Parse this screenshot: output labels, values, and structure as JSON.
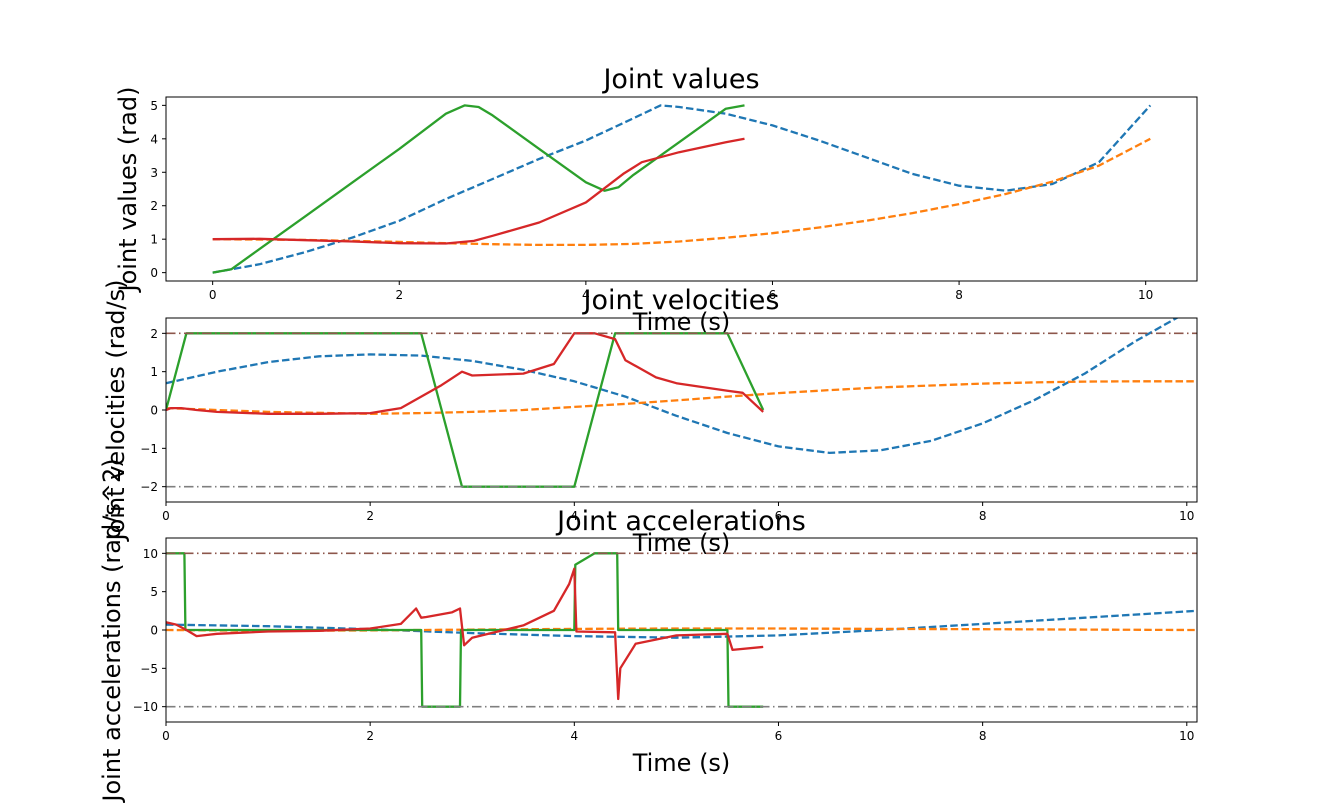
{
  "chart_data": [
    {
      "type": "line",
      "title": "Joint values",
      "xlabel": "Time (s)",
      "ylabel": "Joint values (rad)",
      "xlim": [
        -0.5,
        10.55
      ],
      "ylim": [
        -0.25,
        5.25
      ],
      "xticks": [
        0,
        2,
        4,
        6,
        8,
        10
      ],
      "yticks": [
        0,
        1,
        2,
        3,
        4,
        5
      ],
      "grid": false,
      "series": [
        {
          "color": "#1f77b4",
          "style": "dashed",
          "x": [
            0,
            0.5,
            1,
            1.5,
            2,
            2.5,
            3,
            3.5,
            4,
            4.5,
            4.8,
            5,
            5.5,
            6,
            6.5,
            7,
            7.5,
            8,
            8.5,
            9,
            9.5,
            10.05
          ],
          "y": [
            0,
            0.25,
            0.62,
            1.05,
            1.55,
            2.2,
            2.8,
            3.4,
            3.95,
            4.6,
            5.0,
            4.95,
            4.75,
            4.4,
            3.95,
            3.45,
            2.95,
            2.6,
            2.45,
            2.65,
            3.3,
            5.0
          ]
        },
        {
          "color": "#ff7f0e",
          "style": "dashed",
          "x": [
            0,
            1,
            2,
            2.5,
            3,
            3.5,
            4,
            4.5,
            5,
            5.5,
            6,
            6.5,
            7,
            7.5,
            8,
            8.5,
            9,
            9.5,
            10.05
          ],
          "y": [
            1.0,
            0.98,
            0.92,
            0.88,
            0.85,
            0.83,
            0.83,
            0.86,
            0.93,
            1.04,
            1.18,
            1.35,
            1.55,
            1.78,
            2.05,
            2.35,
            2.72,
            3.2,
            4.0
          ]
        },
        {
          "color": "#2ca02c",
          "style": "solid",
          "x": [
            0,
            0.2,
            0.5,
            1,
            1.5,
            2,
            2.5,
            2.7,
            2.85,
            3,
            3.5,
            4,
            4.2,
            4.35,
            4.5,
            5,
            5.5,
            5.7
          ],
          "y": [
            0,
            0.1,
            0.7,
            1.7,
            2.7,
            3.7,
            4.75,
            5.0,
            4.95,
            4.7,
            3.7,
            2.7,
            2.45,
            2.55,
            2.9,
            3.9,
            4.9,
            5.0
          ]
        },
        {
          "color": "#d62728",
          "style": "solid",
          "x": [
            0,
            0.5,
            1,
            1.5,
            2,
            2.5,
            2.8,
            3,
            3.5,
            4,
            4.4,
            4.6,
            5,
            5.5,
            5.7
          ],
          "y": [
            1.0,
            1.01,
            0.97,
            0.93,
            0.88,
            0.87,
            0.95,
            1.1,
            1.5,
            2.1,
            2.95,
            3.3,
            3.6,
            3.9,
            4.0
          ]
        }
      ]
    },
    {
      "type": "line",
      "title": "Joint velocities",
      "xlabel": "Time (s)",
      "ylabel": "Joint velocities (rad/s)",
      "xlim": [
        0,
        10.1
      ],
      "ylim": [
        -2.4,
        2.4
      ],
      "xticks": [
        0,
        2,
        4,
        6,
        8,
        10
      ],
      "yticks": [
        -2,
        -1,
        0,
        1,
        2
      ],
      "grid": false,
      "series": [
        {
          "color": "#1f77b4",
          "style": "dashed",
          "x": [
            0,
            0.5,
            1,
            1.5,
            2,
            2.5,
            3,
            3.5,
            4,
            4.5,
            5,
            5.5,
            6,
            6.5,
            7,
            7.5,
            8,
            8.5,
            9,
            9.5,
            10.1
          ],
          "y": [
            0.7,
            1.0,
            1.25,
            1.4,
            1.45,
            1.42,
            1.28,
            1.05,
            0.75,
            0.35,
            -0.15,
            -0.6,
            -0.95,
            -1.12,
            -1.05,
            -0.8,
            -0.35,
            0.25,
            0.95,
            1.8,
            2.7
          ]
        },
        {
          "color": "#ff7f0e",
          "style": "dashed",
          "x": [
            0,
            1,
            2,
            2.5,
            3,
            3.5,
            4,
            4.5,
            5,
            5.5,
            6,
            6.5,
            7,
            7.5,
            8,
            8.5,
            9,
            9.5,
            10.1
          ],
          "y": [
            0.05,
            -0.05,
            -0.1,
            -0.08,
            -0.05,
            0.0,
            0.08,
            0.16,
            0.25,
            0.35,
            0.44,
            0.52,
            0.59,
            0.64,
            0.69,
            0.72,
            0.74,
            0.75,
            0.75
          ]
        },
        {
          "color": "#2ca02c",
          "style": "solid",
          "x": [
            0,
            0.2,
            2.5,
            2.9,
            4.0,
            4.4,
            5.5,
            5.85
          ],
          "y": [
            0.0,
            2.0,
            2.0,
            -2.0,
            -2.0,
            2.0,
            2.0,
            0.0
          ]
        },
        {
          "color": "#d62728",
          "style": "solid",
          "x": [
            0,
            0.05,
            0.15,
            0.3,
            0.5,
            1,
            1.5,
            2,
            2.3,
            2.5,
            2.7,
            2.9,
            3,
            3.5,
            3.8,
            4.0,
            4.2,
            4.4,
            4.5,
            4.8,
            5,
            5.5,
            5.65,
            5.85
          ],
          "y": [
            0.0,
            0.05,
            0.05,
            0.0,
            -0.05,
            -0.1,
            -0.1,
            -0.08,
            0.05,
            0.35,
            0.65,
            1.0,
            0.9,
            0.95,
            1.2,
            2.0,
            2.0,
            1.85,
            1.3,
            0.85,
            0.7,
            0.5,
            0.45,
            -0.05
          ]
        },
        {
          "color": "#8c564b",
          "style": "dashdot",
          "x": [
            0,
            10.1
          ],
          "y": [
            2.0,
            2.0
          ]
        },
        {
          "color": "#7f7f7f",
          "style": "dashdot",
          "x": [
            0,
            10.1
          ],
          "y": [
            -2.0,
            -2.0
          ]
        }
      ]
    },
    {
      "type": "line",
      "title": "Joint accelerations",
      "xlabel": "Time (s)",
      "ylabel": "Joint accelerations (rad/s^2)",
      "xlim": [
        0,
        10.1
      ],
      "ylim": [
        -12,
        12
      ],
      "xticks": [
        0,
        2,
        4,
        6,
        8,
        10
      ],
      "yticks": [
        -10,
        -5,
        0,
        5,
        10
      ],
      "grid": false,
      "series": [
        {
          "color": "#1f77b4",
          "style": "dashed",
          "x": [
            0,
            1,
            2,
            3,
            4,
            5,
            6,
            7,
            8,
            9,
            10.1
          ],
          "y": [
            0.7,
            0.5,
            0.1,
            -0.4,
            -0.8,
            -1.0,
            -0.7,
            0.0,
            0.8,
            1.6,
            2.5
          ]
        },
        {
          "color": "#ff7f0e",
          "style": "dashed",
          "x": [
            0,
            1,
            2,
            3,
            4,
            5,
            6,
            7,
            8,
            9,
            10.1
          ],
          "y": [
            0.0,
            -0.1,
            -0.05,
            0.05,
            0.15,
            0.2,
            0.2,
            0.15,
            0.1,
            0.05,
            0.0
          ]
        },
        {
          "color": "#2ca02c",
          "style": "solid",
          "x": [
            0,
            0.18,
            0.19,
            2.5,
            2.51,
            2.88,
            2.89,
            4.0,
            4.01,
            4.2,
            4.42,
            4.43,
            5.5,
            5.51,
            5.85
          ],
          "y": [
            10,
            10,
            0,
            0,
            -10,
            -10,
            0,
            0,
            8.5,
            10,
            10,
            0,
            0,
            -10,
            -10
          ]
        },
        {
          "color": "#d62728",
          "style": "solid",
          "x": [
            0,
            0.1,
            0.2,
            0.3,
            0.5,
            1,
            1.5,
            2,
            2.3,
            2.45,
            2.5,
            2.55,
            2.8,
            2.88,
            2.92,
            3.0,
            3.5,
            3.8,
            3.95,
            4.0,
            4.02,
            4.4,
            4.43,
            4.45,
            4.6,
            5,
            5.5,
            5.55,
            5.85
          ],
          "y": [
            1.0,
            0.7,
            0.0,
            -0.8,
            -0.5,
            -0.2,
            -0.1,
            0.2,
            0.8,
            2.8,
            1.6,
            1.7,
            2.3,
            2.8,
            -2.0,
            -1.0,
            0.6,
            2.5,
            6.0,
            8.0,
            -0.2,
            -0.3,
            -9.0,
            -5.0,
            -1.8,
            -0.7,
            -0.5,
            -2.6,
            -2.2
          ]
        },
        {
          "color": "#8c564b",
          "style": "dashdot",
          "x": [
            0,
            10.1
          ],
          "y": [
            10,
            10
          ]
        },
        {
          "color": "#7f7f7f",
          "style": "dashdot",
          "x": [
            0,
            10.1
          ],
          "y": [
            -10,
            -10
          ]
        }
      ]
    }
  ]
}
